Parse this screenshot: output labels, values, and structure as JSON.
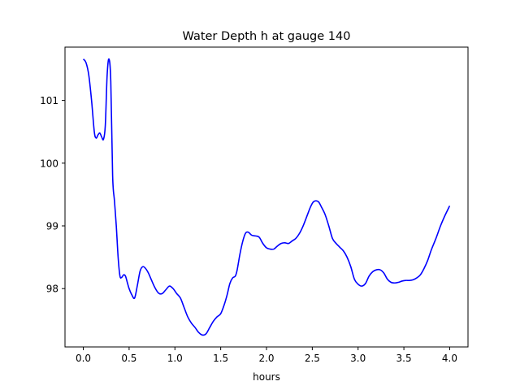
{
  "chart_data": {
    "type": "line",
    "title": "Water Depth h at gauge 140",
    "xlabel": "hours",
    "ylabel": "",
    "xlim": [
      -0.2,
      4.2
    ],
    "ylim": [
      97.07,
      101.85
    ],
    "grid": false,
    "x_ticks": [
      0.0,
      0.5,
      1.0,
      1.5,
      2.0,
      2.5,
      3.0,
      3.5,
      4.0
    ],
    "x_tick_labels": [
      "0.0",
      "0.5",
      "1.0",
      "1.5",
      "2.0",
      "2.5",
      "3.0",
      "3.5",
      "4.0"
    ],
    "y_ticks": [
      98,
      99,
      100,
      101
    ],
    "y_tick_labels": [
      "98",
      "99",
      "100",
      "101"
    ],
    "series": [
      {
        "color": "#0000ff",
        "x": [
          0.0,
          0.03,
          0.06,
          0.09,
          0.12,
          0.14,
          0.16,
          0.18,
          0.2,
          0.22,
          0.24,
          0.26,
          0.28,
          0.3,
          0.32,
          0.34,
          0.36,
          0.38,
          0.4,
          0.42,
          0.44,
          0.46,
          0.48,
          0.5,
          0.53,
          0.56,
          0.59,
          0.62,
          0.65,
          0.68,
          0.71,
          0.74,
          0.78,
          0.82,
          0.86,
          0.9,
          0.94,
          0.98,
          1.02,
          1.06,
          1.1,
          1.14,
          1.18,
          1.22,
          1.26,
          1.3,
          1.34,
          1.38,
          1.42,
          1.46,
          1.5,
          1.54,
          1.57,
          1.6,
          1.63,
          1.66,
          1.68,
          1.71,
          1.74,
          1.77,
          1.8,
          1.84,
          1.88,
          1.92,
          1.96,
          2.0,
          2.04,
          2.08,
          2.12,
          2.16,
          2.2,
          2.24,
          2.28,
          2.32,
          2.36,
          2.4,
          2.44,
          2.48,
          2.51,
          2.54,
          2.57,
          2.6,
          2.64,
          2.68,
          2.72,
          2.76,
          2.8,
          2.84,
          2.88,
          2.92,
          2.96,
          3.0,
          3.04,
          3.08,
          3.12,
          3.16,
          3.2,
          3.24,
          3.28,
          3.32,
          3.36,
          3.4,
          3.44,
          3.48,
          3.52,
          3.56,
          3.6,
          3.64,
          3.68,
          3.72,
          3.76,
          3.8,
          3.85,
          3.9,
          3.95,
          4.0
        ],
        "y": [
          101.66,
          101.6,
          101.4,
          101.0,
          100.5,
          100.4,
          100.45,
          100.48,
          100.42,
          100.38,
          100.6,
          101.4,
          101.66,
          101.3,
          99.8,
          99.4,
          99.0,
          98.5,
          98.2,
          98.18,
          98.22,
          98.2,
          98.1,
          98.0,
          97.9,
          97.85,
          98.05,
          98.28,
          98.35,
          98.32,
          98.25,
          98.15,
          98.02,
          97.93,
          97.92,
          97.98,
          98.04,
          98.0,
          97.92,
          97.85,
          97.7,
          97.55,
          97.45,
          97.38,
          97.3,
          97.26,
          97.28,
          97.38,
          97.48,
          97.55,
          97.6,
          97.75,
          97.9,
          98.08,
          98.17,
          98.2,
          98.3,
          98.55,
          98.75,
          98.88,
          98.9,
          98.85,
          98.84,
          98.82,
          98.72,
          98.65,
          98.63,
          98.63,
          98.68,
          98.72,
          98.73,
          98.72,
          98.76,
          98.8,
          98.88,
          99.0,
          99.15,
          99.3,
          99.38,
          99.4,
          99.38,
          99.3,
          99.18,
          99.0,
          98.8,
          98.72,
          98.66,
          98.6,
          98.5,
          98.35,
          98.15,
          98.07,
          98.04,
          98.08,
          98.2,
          98.27,
          98.3,
          98.3,
          98.25,
          98.15,
          98.1,
          98.09,
          98.1,
          98.12,
          98.13,
          98.13,
          98.14,
          98.17,
          98.22,
          98.32,
          98.45,
          98.62,
          98.8,
          99.0,
          99.17,
          99.32
        ]
      }
    ]
  }
}
